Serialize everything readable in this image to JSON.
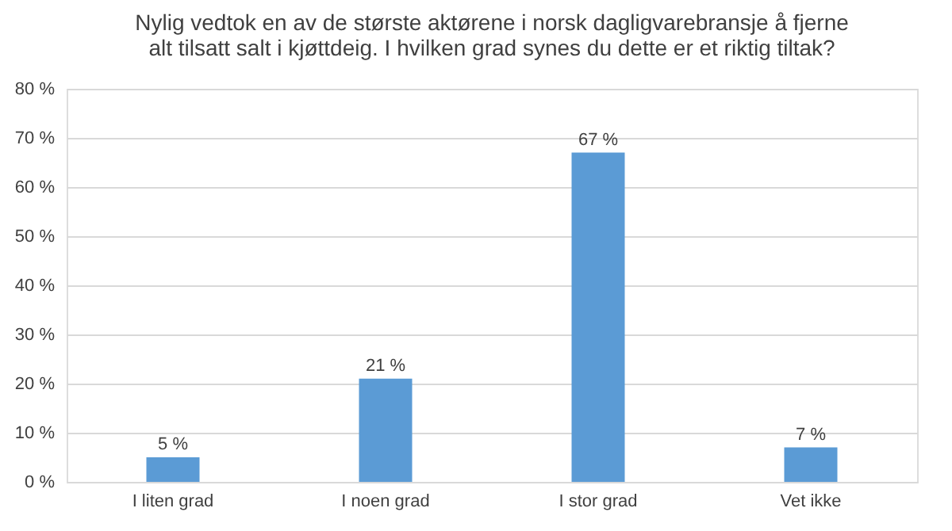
{
  "chart_data": {
    "type": "bar",
    "title": [
      "Nylig vedtok en av de største aktørene i norsk dagligvarebransje å fjerne",
      "alt tilsatt salt i kjøttdeig. I hvilken grad synes du dette er et riktig tiltak?"
    ],
    "categories": [
      "I liten grad",
      "I noen grad",
      "I stor grad",
      "Vet ikke"
    ],
    "values": [
      5,
      21,
      67,
      7
    ],
    "value_labels": [
      "5 %",
      "21 %",
      "67 %",
      "7 %"
    ],
    "color": "#5b9bd5",
    "ylim": [
      0,
      80
    ],
    "yticks": [
      {
        "value": 0,
        "label": "0 %"
      },
      {
        "value": 10,
        "label": "10 %"
      },
      {
        "value": 20,
        "label": "20 %"
      },
      {
        "value": 30,
        "label": "30 %"
      },
      {
        "value": 40,
        "label": "40 %"
      },
      {
        "value": 50,
        "label": "50 %"
      },
      {
        "value": 60,
        "label": "60 %"
      },
      {
        "value": 70,
        "label": "70 %"
      },
      {
        "value": 80,
        "label": "80 %"
      }
    ],
    "grid": "y"
  }
}
